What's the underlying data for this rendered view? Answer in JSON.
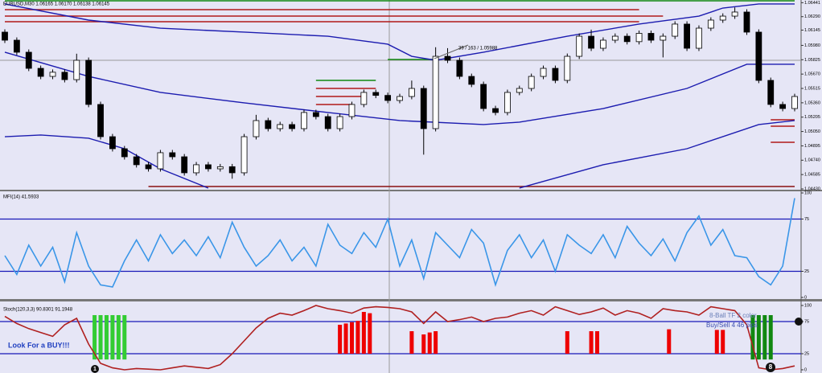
{
  "chart_data": [
    {
      "type": "candlestick",
      "title": "EURUSD,M30 1.06165 1.06170 1.06138 1.06145",
      "annotation": "39 / 163 / 1.05988",
      "color": "#000000",
      "open": [
        1.06123,
        1.06036,
        1.05906,
        1.05732,
        1.05645,
        1.0569,
        1.0561,
        1.05819,
        1.05342,
        1.04994,
        1.04864,
        1.04777,
        1.04691,
        1.04647,
        1.04821,
        1.04777,
        1.04604,
        1.04691,
        1.04647,
        1.0467,
        1.04604,
        1.04994,
        1.05168,
        1.05081,
        1.05125,
        1.05081,
        1.05255,
        1.05211,
        1.05081,
        1.05211,
        1.05342,
        1.05472,
        1.0544,
        1.05385,
        1.05428,
        1.05515,
        1.05081,
        1.05862,
        1.05819,
        1.05645,
        1.05559,
        1.05298,
        1.05255,
        1.05472,
        1.05515,
        1.05645,
        1.05732,
        1.05602,
        1.05862,
        1.06079,
        1.05949,
        1.06036,
        1.06079,
        1.0602,
        1.0611,
        1.06036,
        1.06079,
        1.0621,
        1.05949,
        1.06166,
        1.06253,
        1.06296,
        1.0634,
        1.06123,
        1.05602,
        1.05342,
        1.05298
      ],
      "high": [
        1.06153,
        1.06066,
        1.05936,
        1.05762,
        1.0572,
        1.0572,
        1.0589,
        1.05849,
        1.05372,
        1.05024,
        1.04894,
        1.04807,
        1.04721,
        1.04851,
        1.04851,
        1.04807,
        1.04721,
        1.04721,
        1.047,
        1.047,
        1.05024,
        1.0523,
        1.05198,
        1.05155,
        1.05155,
        1.05285,
        1.05285,
        1.05241,
        1.05241,
        1.05372,
        1.05502,
        1.05502,
        1.0547,
        1.05458,
        1.056,
        1.05545,
        1.0596,
        1.0595,
        1.05849,
        1.05675,
        1.05589,
        1.05328,
        1.05502,
        1.05545,
        1.05675,
        1.05762,
        1.05762,
        1.05892,
        1.06109,
        1.0615,
        1.06066,
        1.06109,
        1.06109,
        1.0614,
        1.0614,
        1.06109,
        1.0624,
        1.0624,
        1.06196,
        1.06283,
        1.06326,
        1.0639,
        1.0637,
        1.06153,
        1.05632,
        1.05372,
        1.05458
      ],
      "low": [
        1.06006,
        1.05876,
        1.05702,
        1.05615,
        1.05615,
        1.0558,
        1.0558,
        1.05312,
        1.04964,
        1.04834,
        1.04747,
        1.04661,
        1.04617,
        1.04617,
        1.04747,
        1.04574,
        1.04574,
        1.04617,
        1.04617,
        1.0454,
        1.04574,
        1.04964,
        1.05051,
        1.05051,
        1.05051,
        1.05051,
        1.05181,
        1.05051,
        1.05051,
        1.05181,
        1.05312,
        1.0541,
        1.05355,
        1.05355,
        1.05398,
        1.048,
        1.05051,
        1.05789,
        1.05615,
        1.05529,
        1.05268,
        1.05225,
        1.05225,
        1.05442,
        1.05485,
        1.05615,
        1.05572,
        1.05572,
        1.05832,
        1.05919,
        1.05919,
        1.06006,
        1.0599,
        1.0599,
        1.06006,
        1.0585,
        1.06049,
        1.05919,
        1.05919,
        1.06136,
        1.06223,
        1.06266,
        1.06093,
        1.05572,
        1.05312,
        1.05268,
        1.05268
      ],
      "close": [
        1.06036,
        1.05906,
        1.05732,
        1.05645,
        1.0569,
        1.0561,
        1.05819,
        1.05342,
        1.04994,
        1.04864,
        1.04777,
        1.04691,
        1.04647,
        1.04821,
        1.04777,
        1.04604,
        1.04691,
        1.04647,
        1.0467,
        1.04604,
        1.04994,
        1.05168,
        1.05081,
        1.05125,
        1.05081,
        1.05255,
        1.05211,
        1.05081,
        1.05211,
        1.05342,
        1.05472,
        1.0544,
        1.05385,
        1.05428,
        1.05515,
        1.05081,
        1.05862,
        1.05819,
        1.05645,
        1.05559,
        1.05298,
        1.05255,
        1.05472,
        1.05515,
        1.05645,
        1.05732,
        1.05602,
        1.05862,
        1.06079,
        1.05949,
        1.06036,
        1.06079,
        1.0602,
        1.0611,
        1.06036,
        1.06079,
        1.0621,
        1.05949,
        1.06166,
        1.06253,
        1.06296,
        1.0634,
        1.06123,
        1.05602,
        1.05342,
        1.05298,
        1.05428
      ],
      "moving_averages": [
        {
          "color": "#1c1cb0",
          "x": [
            0,
            7,
            13,
            20,
            27,
            32,
            34,
            36,
            40,
            47,
            53,
            58,
            60,
            63,
            66
          ],
          "values": [
            1.06427,
            1.06253,
            1.06166,
            1.06123,
            1.06079,
            1.05993,
            1.05862,
            1.05819,
            1.05906,
            1.06079,
            1.0621,
            1.06296,
            1.06383,
            1.06427,
            1.06427
          ]
        },
        {
          "color": "#1c1cb0",
          "x": [
            0,
            7,
            13,
            20,
            27,
            33,
            40,
            43,
            50,
            57,
            62,
            66
          ],
          "values": [
            1.05906,
            1.05645,
            1.05472,
            1.05359,
            1.05255,
            1.05168,
            1.05125,
            1.05151,
            1.05298,
            1.05515,
            1.05776,
            1.05776
          ]
        },
        {
          "color": "#1c1cb0",
          "x": [
            0,
            3,
            7,
            10,
            13,
            17
          ],
          "values": [
            1.04994,
            1.05012,
            1.04977,
            1.04864,
            1.04647,
            1.04439
          ]
        },
        {
          "color": "#1c1cb0",
          "x": [
            43,
            50,
            57,
            63,
            66
          ],
          "values": [
            1.04439,
            1.04691,
            1.04864,
            1.05125,
            1.05168
          ]
        }
      ],
      "levels": [
        {
          "value": 1.06461,
          "color": "#118811",
          "span": [
            0,
            66
          ]
        },
        {
          "value": 1.06366,
          "color": "#b01818",
          "span": [
            0,
            53
          ]
        },
        {
          "value": 1.06296,
          "color": "#b01818",
          "span": [
            0,
            55
          ]
        },
        {
          "value": 1.06236,
          "color": "#b01818",
          "span": [
            0,
            53
          ]
        },
        {
          "value": 1.04456,
          "color": "#8a1010",
          "span": [
            12,
            66
          ]
        },
        {
          "value": 1.05828,
          "color": "#118811",
          "span": [
            32,
            36
          ]
        },
        {
          "value": 1.05602,
          "color": "#118811",
          "span": [
            26,
            31
          ]
        },
        {
          "value": 1.05515,
          "color": "#b01818",
          "span": [
            26,
            31
          ]
        },
        {
          "value": 1.05428,
          "color": "#b01818",
          "span": [
            26,
            30
          ]
        },
        {
          "value": 1.05342,
          "color": "#b01818",
          "span": [
            26,
            29
          ]
        },
        {
          "value": 1.05177,
          "color": "#b01818",
          "span": [
            64,
            66
          ]
        },
        {
          "value": 1.05107,
          "color": "#b01818",
          "span": [
            64,
            66
          ]
        },
        {
          "value": 1.04934,
          "color": "#b01818",
          "span": [
            64,
            66
          ]
        }
      ],
      "ylim": [
        1.0443,
        1.0647
      ],
      "yticks": [
        1.06441,
        {
          "value": 1.0629,
          "label": "1.06290"
        },
        1.06145,
        {
          "value": 1.0598,
          "label": "1.05980"
        },
        1.05825,
        {
          "value": 1.0567,
          "label": "1.05670"
        },
        1.05515,
        {
          "value": 1.0536,
          "label": "1.05360"
        },
        1.05205,
        {
          "value": 1.0505,
          "label": "1.05050"
        },
        1.04895,
        {
          "value": 1.0474,
          "label": "1.04740"
        },
        1.04585,
        {
          "value": 1.0443,
          "label": "1.04430"
        }
      ]
    },
    {
      "type": "line",
      "title": "MFI(14) 41.5933",
      "color": "#3a96e8",
      "values": [
        40,
        22,
        50,
        30,
        48,
        15,
        62,
        30,
        12,
        10,
        35,
        55,
        35,
        60,
        42,
        55,
        40,
        58,
        38,
        72,
        48,
        30,
        40,
        55,
        35,
        48,
        30,
        70,
        50,
        42,
        62,
        48,
        75,
        30,
        55,
        18,
        62,
        50,
        38,
        65,
        52,
        12,
        45,
        60,
        38,
        55,
        25,
        60,
        50,
        42,
        60,
        38,
        68,
        52,
        40,
        56,
        35,
        62,
        78,
        50,
        65,
        40,
        38,
        20,
        12,
        30,
        95
      ],
      "ylim": [
        0,
        100
      ],
      "yticks": [
        100,
        75,
        25,
        0
      ]
    },
    {
      "type": "line",
      "title": "Stoch(120,3,3) 90.8301 91.1948",
      "color": "#b02020",
      "values": [
        83,
        72,
        64,
        58,
        52,
        70,
        80,
        40,
        10,
        3,
        0,
        2,
        1,
        0,
        3,
        6,
        4,
        2,
        8,
        25,
        45,
        65,
        80,
        88,
        85,
        92,
        100,
        95,
        92,
        88,
        96,
        98,
        97,
        95,
        90,
        72,
        90,
        75,
        78,
        82,
        75,
        80,
        82,
        88,
        92,
        85,
        98,
        92,
        86,
        90,
        96,
        85,
        92,
        88,
        80,
        95,
        92,
        90,
        85,
        98,
        95,
        92,
        70,
        3,
        0,
        2,
        6
      ],
      "histograms": [
        {
          "color": "#33cc33",
          "base": 16,
          "x": [
            7.5,
            8,
            8.5,
            9,
            9.5,
            10
          ],
          "values": [
            85,
            85,
            85,
            85,
            85,
            85
          ]
        },
        {
          "color": "#ee0000",
          "base": 25,
          "x": [
            28,
            28.5,
            29,
            29.5,
            30,
            30.5
          ],
          "values": [
            70,
            72,
            74,
            76,
            90,
            88
          ]
        },
        {
          "color": "#ee0000",
          "base": 25,
          "x": [
            34,
            35,
            35.5,
            36
          ],
          "values": [
            60,
            55,
            58,
            60
          ]
        },
        {
          "color": "#ee0000",
          "base": 25,
          "x": [
            47,
            49,
            49.5,
            55.5,
            59.5,
            60
          ],
          "values": [
            60,
            60,
            60,
            63,
            62,
            62
          ]
        },
        {
          "color": "#118811",
          "base": 16,
          "x": [
            62.5,
            63,
            63.5,
            64
          ],
          "values": [
            85,
            85,
            85,
            85
          ]
        }
      ],
      "annotations": [
        "Look For a BUY!!!",
        "8-Ball TF 2 color",
        "Buy/Sell 4 46 pips"
      ],
      "markers": [
        "1",
        "8"
      ],
      "ylim": [
        0,
        100
      ],
      "yticks": [
        100,
        75,
        25,
        0
      ]
    }
  ]
}
